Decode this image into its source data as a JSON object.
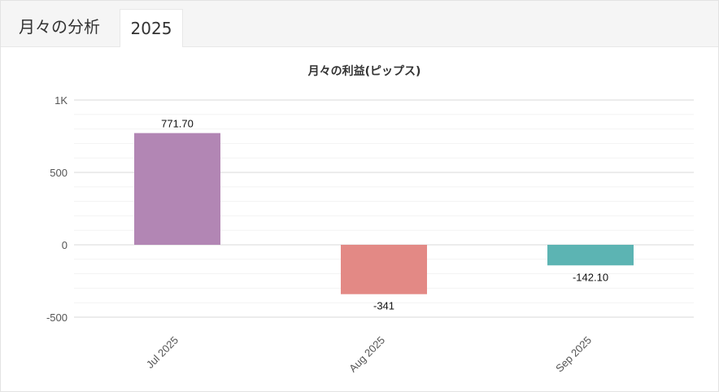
{
  "header": {
    "title": "月々の分析",
    "year_tab": "2025"
  },
  "chart_data": {
    "type": "bar",
    "title": "月々の利益(ピップス)",
    "xlabel": "",
    "ylabel": "",
    "categories": [
      "Jul 2025",
      "Aug 2025",
      "Sep 2025"
    ],
    "values": [
      771.7,
      -341,
      -142.1
    ],
    "data_labels": [
      "771.70",
      "-341",
      "-142.10"
    ],
    "colors": [
      "#b286b4",
      "#e38985",
      "#5cb4b3"
    ],
    "ylim": [
      -500,
      1000
    ],
    "y_ticks": [
      1000,
      500,
      0,
      -500
    ],
    "y_tick_labels": [
      "1K",
      "500",
      "0",
      "-500"
    ],
    "grid": true,
    "legend": "none"
  }
}
